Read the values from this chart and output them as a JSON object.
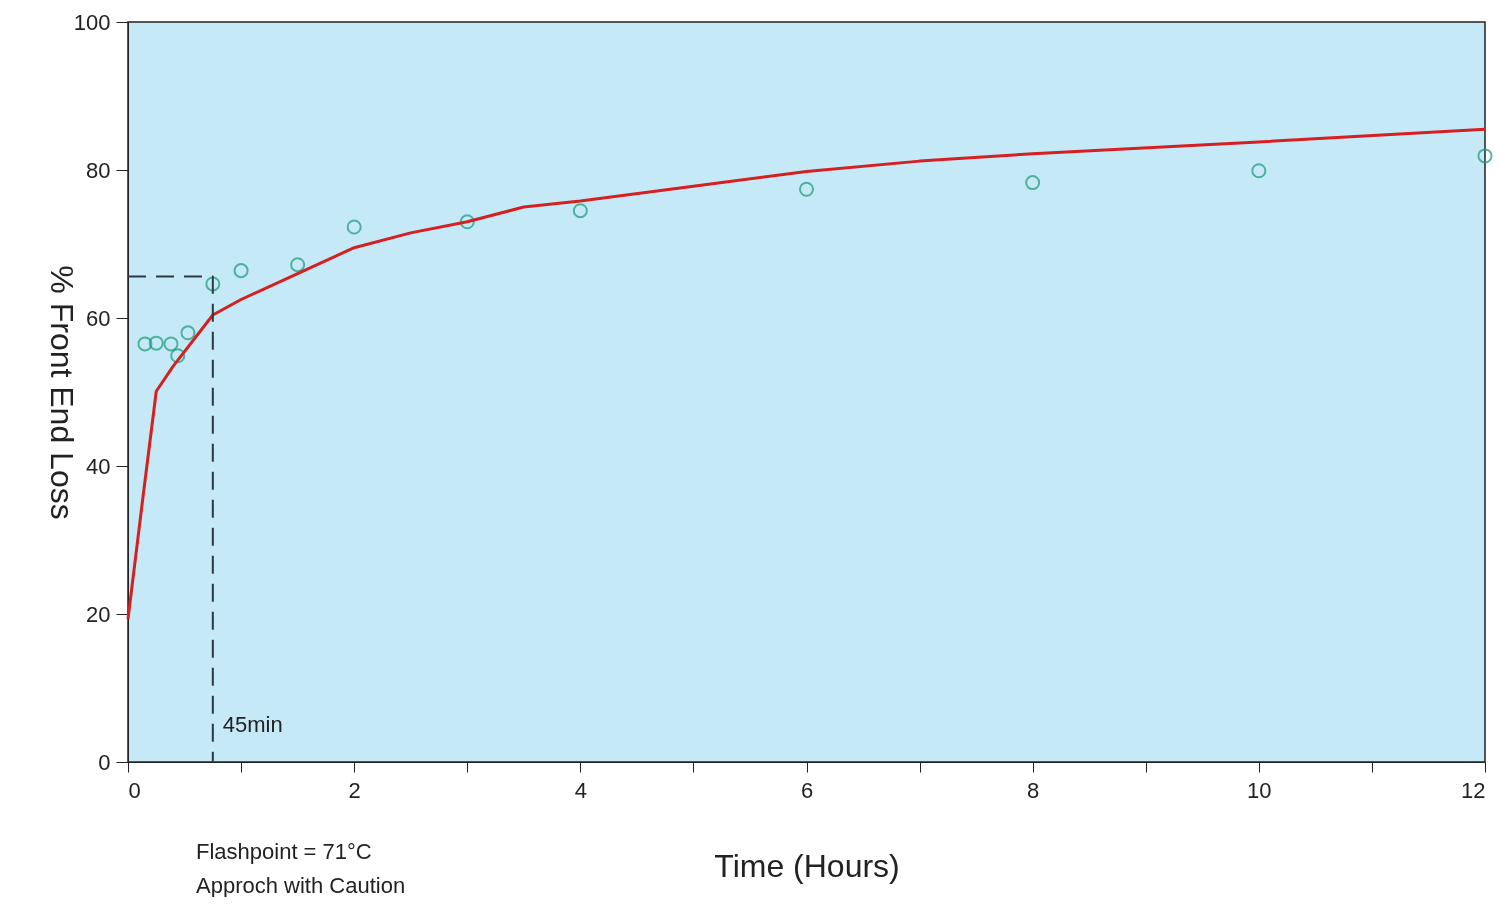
{
  "chart_data": {
    "type": "scatter",
    "xlabel": "Time (Hours)",
    "ylabel": "% Front End Loss",
    "xlim": [
      0,
      12
    ],
    "ylim": [
      0,
      100
    ],
    "xticks": [
      0,
      {
        "value": 1,
        "label": null
      },
      2,
      {
        "value": 3,
        "label": null
      },
      4,
      {
        "value": 5,
        "label": null
      },
      6,
      {
        "value": 7,
        "label": null
      },
      8,
      {
        "value": 9,
        "label": null
      },
      10,
      {
        "value": 11,
        "label": null
      },
      12
    ],
    "yticks": [
      0,
      20,
      40,
      60,
      80,
      100
    ],
    "grid": false,
    "series": [
      {
        "marker": "circle",
        "color": "#1a9a78",
        "x": [
          0.15,
          0.25,
          0.38,
          0.44,
          0.53,
          0.75,
          1,
          1.5,
          2,
          3,
          4,
          6,
          8,
          10,
          12
        ],
        "values": [
          56.5,
          56.6,
          56.5,
          54.9,
          58.0,
          64.6,
          66.4,
          67.2,
          72.3,
          73.0,
          74.5,
          77.4,
          78.3,
          79.9,
          81.9
        ]
      },
      {
        "type": "line",
        "marker": "none",
        "line_style": "solid",
        "color": "#d42020",
        "x": [
          0,
          0.13,
          0.25,
          0.4,
          0.75,
          1,
          1.5,
          2,
          2.5,
          3,
          3.5,
          4,
          5,
          6,
          7,
          8,
          10,
          12
        ],
        "values": [
          19.3,
          35.5,
          50.1,
          53.5,
          60.4,
          62.5,
          66,
          69.5,
          71.5,
          73,
          75,
          75.8,
          77.8,
          79.8,
          81.2,
          82.2,
          83.8,
          85.5
        ]
      },
      {
        "type": "line",
        "marker": "none",
        "line_style": "dashed",
        "color": "#2a3a40",
        "x": [
          0,
          0.75,
          0.75
        ],
        "values": [
          65.6,
          65.6,
          0
        ]
      }
    ],
    "annotations": [
      {
        "text": "45min",
        "x": 0.75,
        "y": 5
      },
      "Flashpoint = 71°C",
      "Approch with Caution"
    ]
  }
}
